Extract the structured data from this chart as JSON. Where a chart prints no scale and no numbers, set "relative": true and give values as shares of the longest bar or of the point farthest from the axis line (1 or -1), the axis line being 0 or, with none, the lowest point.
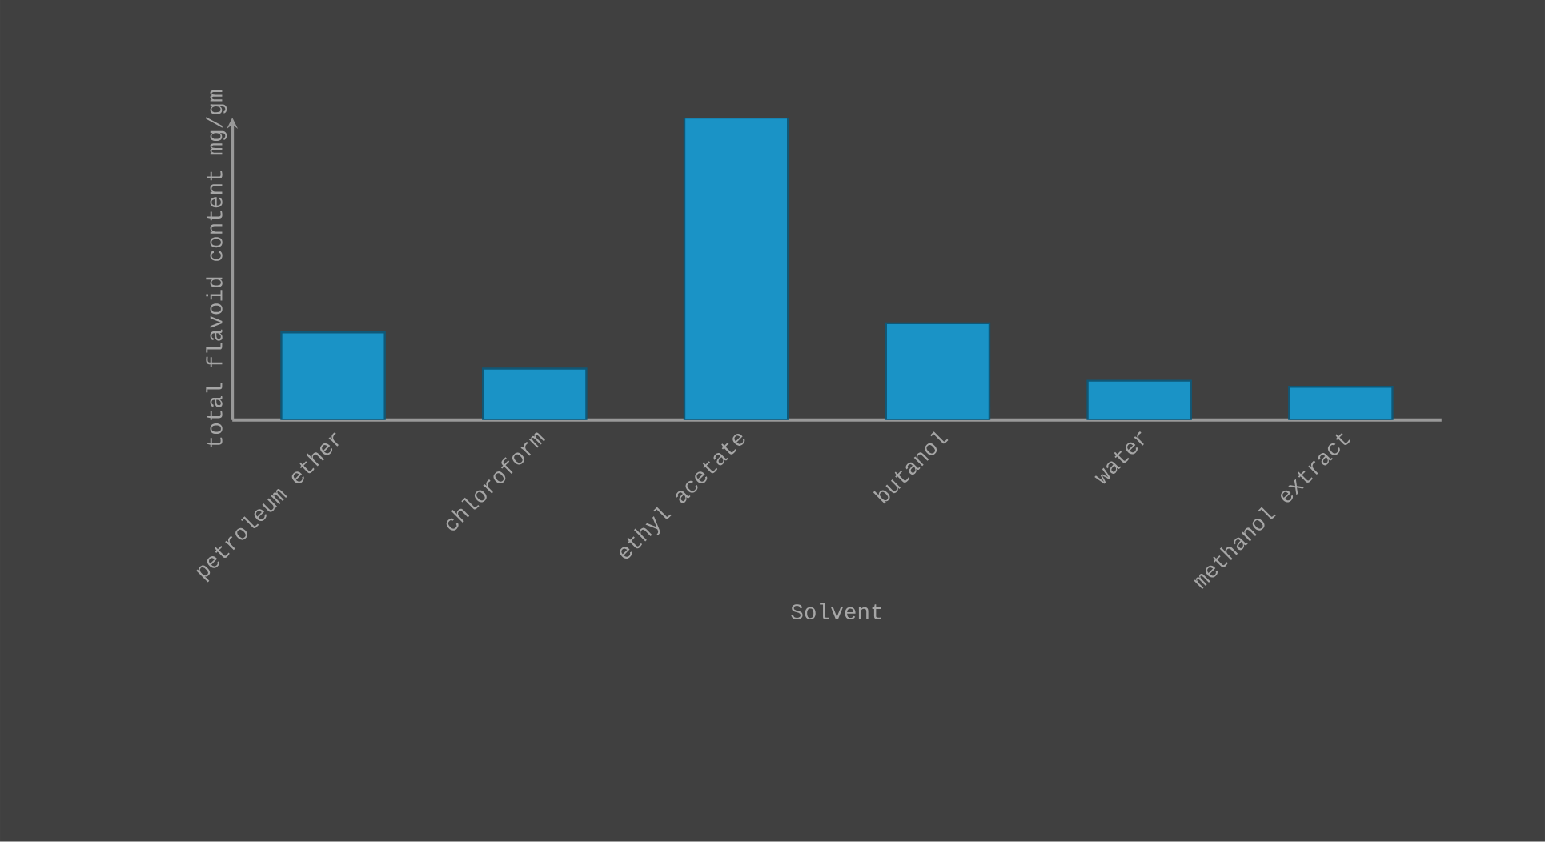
{
  "chart_data": {
    "type": "bar",
    "xlabel": "Solvent",
    "ylabel": "total flavoid content mg/gm",
    "categories": [
      "petroleum ether",
      "chloroform",
      "ethyl acetate",
      "butanol",
      "water",
      "methanol extract"
    ],
    "values": [
      0.29,
      0.17,
      1,
      0.32,
      0.13,
      0.11
    ],
    "relative": true,
    "color": "#1a93c6",
    "legend": false
  }
}
